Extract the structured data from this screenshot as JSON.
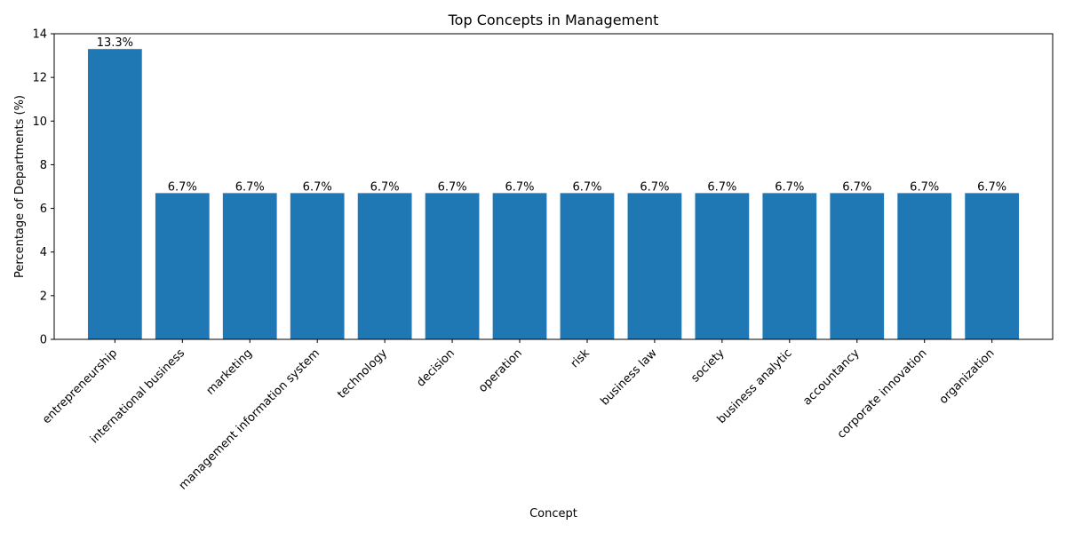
{
  "chart_data": {
    "type": "bar",
    "title": "Top Concepts in Management",
    "xlabel": "Concept",
    "ylabel": "Percentage of Departments (%)",
    "ylim": [
      0,
      14
    ],
    "yticks": [
      0,
      2,
      4,
      6,
      8,
      10,
      12,
      14
    ],
    "grid": false,
    "bar_color": "#1f77b4",
    "categories": [
      "entrepreneurship",
      "international business",
      "marketing",
      "management information system",
      "technology",
      "decision",
      "operation",
      "risk",
      "business law",
      "society",
      "business analytic",
      "accountancy",
      "corporate innovation",
      "organization"
    ],
    "values": [
      13.3,
      6.7,
      6.7,
      6.7,
      6.7,
      6.7,
      6.7,
      6.7,
      6.7,
      6.7,
      6.7,
      6.7,
      6.7,
      6.7
    ],
    "value_labels": [
      "13.3%",
      "6.7%",
      "6.7%",
      "6.7%",
      "6.7%",
      "6.7%",
      "6.7%",
      "6.7%",
      "6.7%",
      "6.7%",
      "6.7%",
      "6.7%",
      "6.7%",
      "6.7%"
    ]
  }
}
